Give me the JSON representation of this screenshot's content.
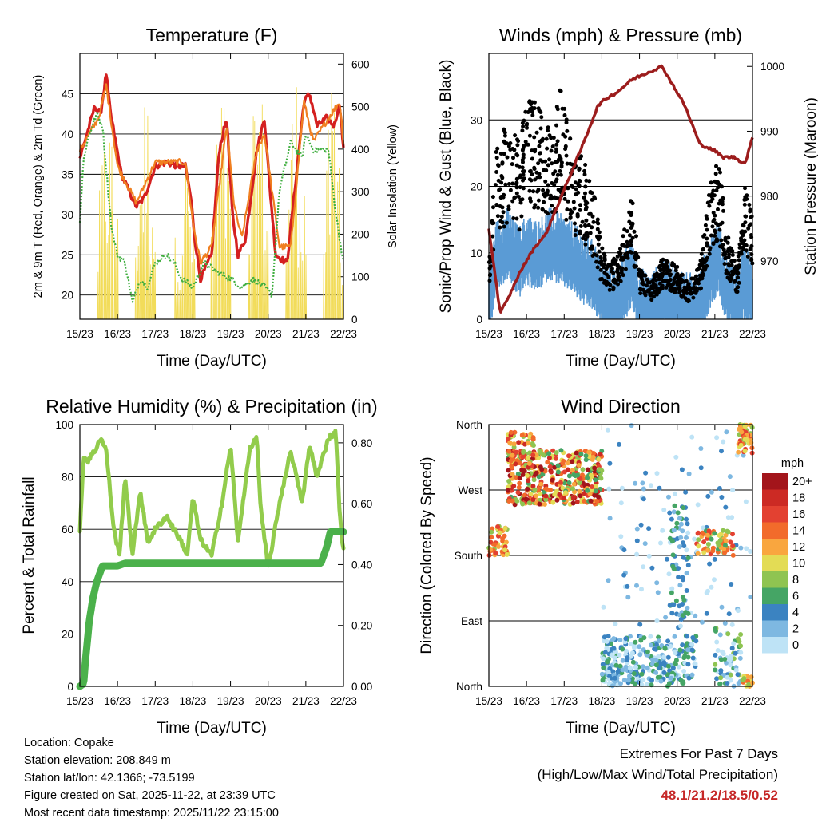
{
  "colors": {
    "temp_2m": "#d42020",
    "temp_9m": "#f07f20",
    "dewpoint": "#3fae3f",
    "solar": "#f2dc5a",
    "wind": "#5a9bd5",
    "gust": "#000000",
    "pressure": "#9c1c1c",
    "rh": "#92cc4c",
    "precip": "#4bb14b",
    "extremes": "#c62828"
  },
  "chart_data": [
    {
      "id": "temperature",
      "type": "line",
      "title": "Temperature (F)",
      "xlabel": "Time (Day/UTC)",
      "ylabel": "2m & 9m T (Red, Orange) & 2m Td (Green)",
      "y2label": "Solar Insolation (Yellow)",
      "xlim": [
        0,
        7
      ],
      "xticks": [
        "15/23",
        "16/23",
        "17/23",
        "18/23",
        "19/23",
        "20/23",
        "21/23",
        "22/23"
      ],
      "ylim": [
        17,
        50
      ],
      "yticks": [
        20,
        25,
        30,
        35,
        40,
        45
      ],
      "y2lim": [
        0,
        625
      ],
      "y2ticks": [
        0,
        100,
        200,
        300,
        400,
        500,
        600
      ],
      "series": [
        {
          "name": "2m T",
          "color": "#d42020",
          "x": [
            0,
            0.25,
            0.4,
            0.55,
            0.7,
            0.8,
            0.95,
            1.1,
            1.3,
            1.5,
            1.7,
            2.0,
            2.3,
            2.6,
            2.8,
            2.95,
            3.05,
            3.2,
            3.5,
            3.7,
            3.9,
            4.05,
            4.2,
            4.4,
            4.7,
            4.9,
            5.05,
            5.2,
            5.5,
            5.75,
            5.95,
            6.1,
            6.3,
            6.55,
            6.75,
            6.9,
            7.0
          ],
          "y": [
            37,
            41,
            43.5,
            42.5,
            47.5,
            43,
            39,
            35,
            33,
            31,
            32,
            36,
            36.5,
            36,
            36,
            32,
            27,
            22,
            25,
            38,
            42,
            30,
            25,
            27,
            38,
            42,
            33,
            25,
            24,
            35,
            44,
            45,
            41,
            42,
            41,
            44,
            38
          ],
          "width": 3.4
        },
        {
          "name": "9m T",
          "color": "#f07f20",
          "x": [
            0,
            0.5,
            0.7,
            1.0,
            1.5,
            2.0,
            2.8,
            3.0,
            3.2,
            3.5,
            3.9,
            4.1,
            4.3,
            4.7,
            4.9,
            5.1,
            5.3,
            5.6,
            5.95,
            6.2,
            6.6,
            6.9,
            7.0
          ],
          "y": [
            38,
            42,
            46,
            36,
            31.5,
            36.5,
            36.5,
            29,
            24,
            26,
            41,
            31,
            27,
            38,
            40,
            33,
            26,
            26,
            44,
            39,
            42,
            44,
            39
          ],
          "width": 2.2
        },
        {
          "name": "2m Td",
          "color": "#3fae3f",
          "x": [
            0,
            0.1,
            0.25,
            0.45,
            0.6,
            0.75,
            0.85,
            1.0,
            1.2,
            1.4,
            1.6,
            1.8,
            2.0,
            2.3,
            2.5,
            2.7,
            3.0,
            3.3,
            3.6,
            4.0,
            4.3,
            4.6,
            4.9,
            5.1,
            5.3,
            5.6,
            5.9,
            6.0,
            6.2,
            6.4,
            6.6,
            6.8,
            7.0
          ],
          "y": [
            29,
            37,
            40,
            42.5,
            41,
            33,
            28,
            25,
            24,
            19,
            22,
            21,
            24,
            25,
            24,
            22,
            21,
            24,
            23,
            22,
            21,
            22,
            21,
            20,
            33,
            39,
            37,
            40,
            38,
            38,
            38,
            30,
            24
          ],
          "width": 2.2
        }
      ],
      "solar_peaks_x": [
        0.75,
        1.75,
        2.8,
        3.75,
        4.75,
        5.75,
        6.75
      ],
      "solar_peaks_y": [
        510,
        560,
        420,
        560,
        590,
        600,
        570
      ]
    },
    {
      "id": "winds",
      "type": "line",
      "title": "Winds (mph) & Pressure (mb)",
      "xlabel": "Time (Day/UTC)",
      "ylabel": "Sonic/Prop Wind & Gust (Blue, Black)",
      "y2label": "Station Pressure (Maroon)",
      "xlim": [
        0,
        7
      ],
      "xticks": [
        "15/23",
        "16/23",
        "17/23",
        "18/23",
        "19/23",
        "20/23",
        "21/23",
        "22/23"
      ],
      "ylim": [
        0,
        40
      ],
      "yticks": [
        0,
        10,
        20,
        30
      ],
      "y2lim": [
        961,
        1002
      ],
      "y2ticks": [
        970,
        980,
        990,
        1000
      ],
      "wind_x": [
        0,
        0.2,
        0.5,
        0.8,
        1.0,
        1.3,
        1.6,
        1.9,
        2.2,
        2.5,
        2.8,
        3.0,
        3.2,
        3.5,
        3.8,
        4.0,
        4.3,
        4.6,
        5.0,
        5.3,
        5.6,
        5.9,
        6.1,
        6.3,
        6.6,
        6.8,
        7.0
      ],
      "wind_y": [
        3,
        10,
        12,
        9,
        11,
        10,
        12,
        11,
        10,
        8,
        7,
        4,
        3,
        4,
        8,
        3,
        2,
        4,
        3,
        2,
        3,
        8,
        10,
        5,
        3,
        6,
        5
      ],
      "gust_y": [
        6,
        20,
        22,
        20,
        25,
        24,
        23,
        26,
        20,
        18,
        14,
        8,
        6,
        8,
        14,
        6,
        4,
        7,
        6,
        4,
        6,
        16,
        18,
        10,
        6,
        15,
        12
      ],
      "pressure_x": [
        0,
        0.3,
        0.5,
        0.8,
        1.2,
        1.5,
        2.0,
        2.5,
        2.9,
        3.1,
        3.4,
        3.8,
        4.2,
        4.6,
        4.9,
        5.2,
        5.6,
        6.0,
        6.2,
        6.5,
        6.8,
        7.0
      ],
      "pressure_y": [
        975,
        962,
        964,
        968,
        972,
        974,
        981,
        988,
        994,
        995,
        996,
        998,
        999,
        1000,
        997,
        994,
        988,
        987,
        986,
        986,
        985,
        989
      ]
    },
    {
      "id": "humidity",
      "type": "line",
      "title": "Relative Humidity (%) & Precipitation (in)",
      "xlabel": "Time (Day/UTC)",
      "ylabel": "Percent & Total Rainfall",
      "xlim": [
        0,
        7
      ],
      "xticks": [
        "15/23",
        "16/23",
        "17/23",
        "18/23",
        "19/23",
        "20/23",
        "21/23",
        "22/23"
      ],
      "ylim": [
        0,
        100
      ],
      "yticks": [
        0,
        20,
        40,
        60,
        80,
        100
      ],
      "y2lim": [
        0,
        0.86
      ],
      "y2ticks": [
        "0.00",
        "0.20",
        "0.40",
        "0.60",
        "0.80"
      ],
      "series": [
        {
          "name": "RH",
          "color": "#92cc4c",
          "x": [
            0,
            0.1,
            0.2,
            0.4,
            0.55,
            0.7,
            0.9,
            1.05,
            1.2,
            1.4,
            1.6,
            1.8,
            2.0,
            2.3,
            2.5,
            2.7,
            2.85,
            3.0,
            3.2,
            3.5,
            3.8,
            4.0,
            4.2,
            4.5,
            4.7,
            4.8,
            5.0,
            5.3,
            5.6,
            5.9,
            6.1,
            6.3,
            6.6,
            6.8,
            6.9,
            7.0
          ],
          "y": [
            60,
            88,
            86,
            90,
            95,
            90,
            60,
            50,
            80,
            50,
            75,
            55,
            60,
            65,
            60,
            55,
            50,
            72,
            56,
            50,
            72,
            92,
            55,
            90,
            95,
            68,
            45,
            70,
            90,
            70,
            92,
            80,
            95,
            97,
            65,
            52
          ],
          "width": 5
        },
        {
          "name": "Precip",
          "color": "#4bb14b",
          "x": [
            0,
            0.1,
            0.15,
            0.25,
            0.35,
            0.45,
            0.6,
            1.0,
            1.2,
            1.5,
            6.4,
            6.55,
            6.65,
            6.8,
            7.0
          ],
          "y": [
            0,
            1,
            10,
            25,
            34,
            40,
            46,
            46,
            47,
            47,
            47,
            53,
            59,
            59,
            59
          ],
          "width": 9
        }
      ]
    },
    {
      "id": "direction",
      "type": "scatter",
      "title": "Wind Direction",
      "xlabel": "Time (Day/UTC)",
      "ylabel": "Direction (Colored By Speed)",
      "xlim": [
        0,
        7
      ],
      "xticks": [
        "15/23",
        "16/23",
        "17/23",
        "18/23",
        "19/23",
        "20/23",
        "21/23",
        "22/23"
      ],
      "ylim": [
        0,
        360
      ],
      "yticks": [
        "North",
        "East",
        "South",
        "West",
        "North"
      ],
      "legend_title": "mph",
      "legend_labels": [
        "20+",
        "18",
        "16",
        "14",
        "12",
        "10",
        "8",
        "6",
        "4",
        "2",
        "0"
      ],
      "legend_colors": [
        "#a3151b",
        "#cc2a24",
        "#e34131",
        "#f26b2b",
        "#f9a63f",
        "#e3dc55",
        "#8fc451",
        "#45a565",
        "#3b83c1",
        "#7eb8e1",
        "#bee3f6"
      ]
    }
  ],
  "info": {
    "location": "Location: Copake",
    "elevation": "Station elevation: 208.849 m",
    "latlon": "Station lat/lon: 42.1366; -73.5199",
    "created": "Figure created on Sat, 2025-11-22, at 23:39 UTC",
    "recent": "Most recent data timestamp: 2025/11/22 23:15:00"
  },
  "extremes": {
    "title": "Extremes For Past 7 Days",
    "subtitle": "(High/Low/Max Wind/Total Precipitation)",
    "values": "48.1/21.2/18.5/0.52"
  }
}
